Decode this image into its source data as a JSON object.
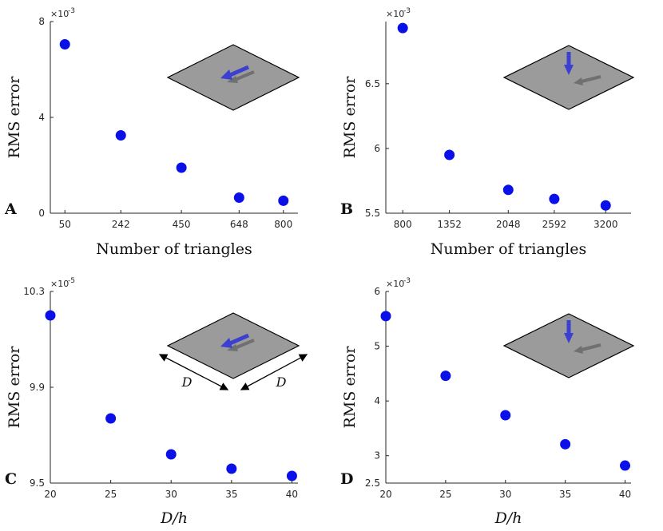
{
  "colors": {
    "marker": "#0a10e8",
    "axis": "#262626",
    "plane": "#9b9b9b",
    "arrow_main": "#3b40d0",
    "arrow_shadow": "#707070"
  },
  "chart_data": [
    {
      "type": "scatter",
      "panel": "A",
      "xlabel": "Number of triangles",
      "ylabel": "RMS error",
      "multiplier_base": "×10",
      "multiplier_exp": "-3",
      "xticks": [
        50,
        242,
        450,
        648,
        800
      ],
      "yticks": [
        0,
        4,
        8
      ],
      "xlim": [
        0,
        850
      ],
      "ylim": [
        0,
        8
      ],
      "x": [
        50,
        242,
        450,
        648,
        800
      ],
      "y": [
        7.05,
        3.25,
        1.9,
        0.65,
        0.52
      ],
      "inset": "horizontal-arrow"
    },
    {
      "type": "scatter",
      "panel": "B",
      "xlabel": "Number of triangles",
      "ylabel": "RMS error",
      "multiplier_base": "×10",
      "multiplier_exp": "-3",
      "xticks": [
        800,
        1352,
        2048,
        2592,
        3200
      ],
      "yticks": [
        5.5,
        6,
        6.5
      ],
      "xlim": [
        600,
        3500
      ],
      "ylim": [
        5.5,
        6.98
      ],
      "x": [
        800,
        1352,
        2048,
        2592,
        3200
      ],
      "y": [
        6.93,
        5.95,
        5.68,
        5.61,
        5.56
      ],
      "inset": "vertical-arrow"
    },
    {
      "type": "scatter",
      "panel": "C",
      "xlabel": "D/h",
      "ylabel": "RMS error",
      "multiplier_base": "×10",
      "multiplier_exp": "-5",
      "xticks": [
        20,
        25,
        30,
        35,
        40
      ],
      "yticks": [
        9.5,
        9.9,
        10.3
      ],
      "xlim": [
        20,
        40.5
      ],
      "ylim": [
        9.5,
        10.3
      ],
      "x": [
        20,
        25,
        30,
        35,
        40
      ],
      "y": [
        10.2,
        9.77,
        9.62,
        9.56,
        9.53
      ],
      "inset": "horizontal-arrow-with-D",
      "inset_label": "D"
    },
    {
      "type": "scatter",
      "panel": "D",
      "xlabel": "D/h",
      "ylabel": "RMS error",
      "multiplier_base": "×10",
      "multiplier_exp": "-3",
      "xticks": [
        20,
        25,
        30,
        35,
        40
      ],
      "yticks": [
        2.5,
        3,
        4,
        5,
        6
      ],
      "xlim": [
        20,
        40.5
      ],
      "ylim": [
        2.5,
        6
      ],
      "x": [
        20,
        25,
        30,
        35,
        40
      ],
      "y": [
        5.55,
        4.46,
        3.74,
        3.21,
        2.82
      ],
      "inset": "vertical-arrow"
    }
  ]
}
